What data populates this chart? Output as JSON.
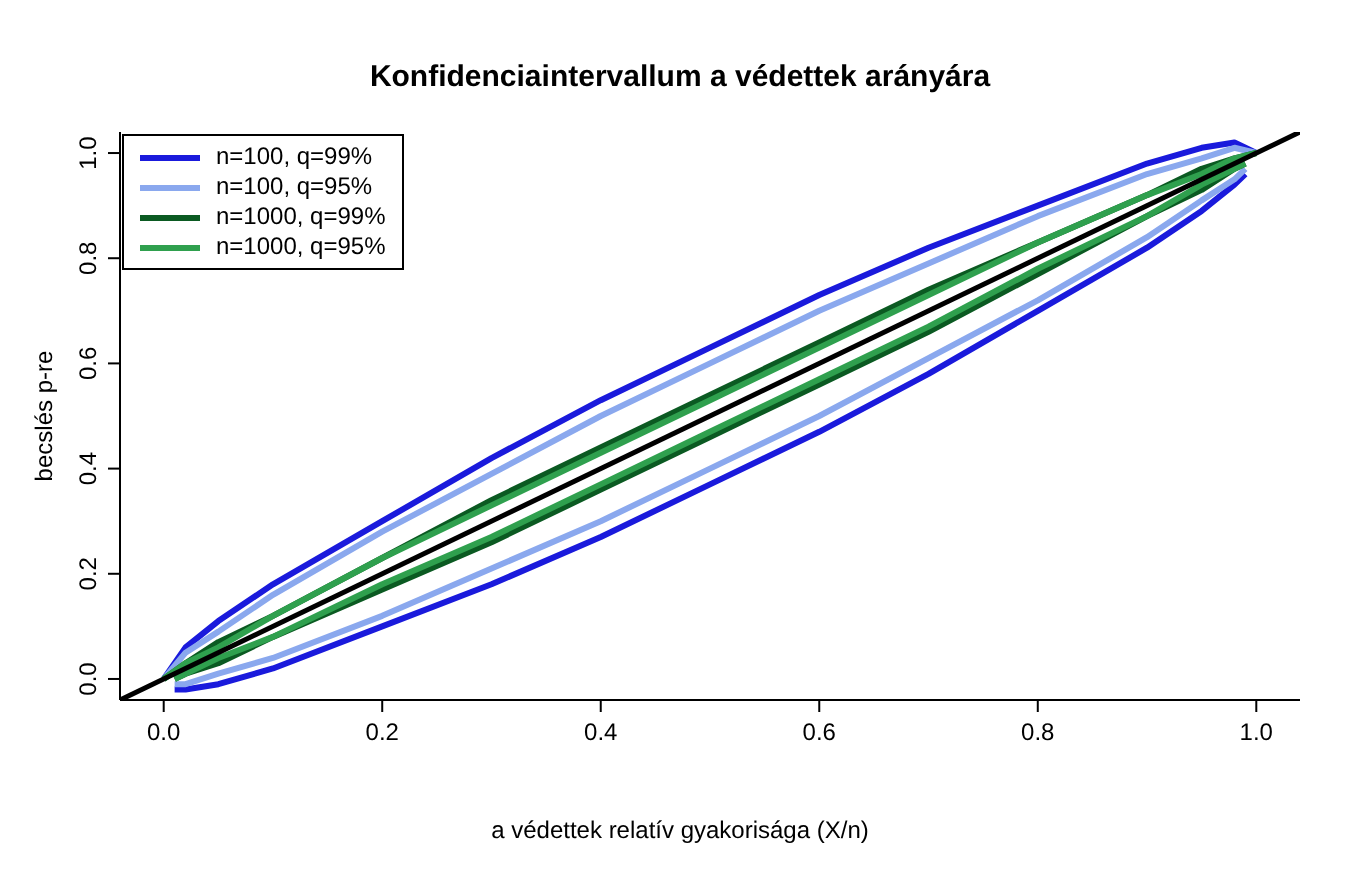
{
  "chart_data": {
    "type": "line",
    "title": "Konfidenciaintervallum a védettek arányára",
    "xlabel": "a védettek relatív gyakorisága (X/n)",
    "ylabel": "becslés p-re",
    "x": [
      0,
      0.02,
      0.05,
      0.1,
      0.2,
      0.3,
      0.4,
      0.5,
      0.6,
      0.7,
      0.8,
      0.9,
      0.95,
      0.98,
      1
    ],
    "series": [
      {
        "name": "n=100, q=99%",
        "color": "#1a1adc",
        "values": [
          0,
          0.06,
          0.11,
          0.18,
          0.3,
          0.42,
          0.53,
          0.63,
          0.73,
          0.82,
          0.9,
          0.98,
          1.01,
          1.02,
          1
        ]
      },
      {
        "color": "#1a1adc",
        "x": [
          0.01,
          0.02,
          0.05,
          0.1,
          0.2,
          0.3,
          0.4,
          0.5,
          0.6,
          0.7,
          0.8,
          0.9,
          0.95,
          0.98,
          0.99
        ],
        "values": [
          -0.02,
          -0.02,
          -0.01,
          0.02,
          0.1,
          0.18,
          0.27,
          0.37,
          0.47,
          0.58,
          0.7,
          0.82,
          0.89,
          0.94,
          0.96
        ]
      },
      {
        "name": "n=100, q=95%",
        "color": "#8aa8ee",
        "values": [
          0,
          0.05,
          0.09,
          0.16,
          0.28,
          0.39,
          0.5,
          0.6,
          0.7,
          0.79,
          0.88,
          0.96,
          0.99,
          1.01,
          1
        ]
      },
      {
        "color": "#8aa8ee",
        "x": [
          0.01,
          0.02,
          0.05,
          0.1,
          0.2,
          0.3,
          0.4,
          0.5,
          0.6,
          0.7,
          0.8,
          0.9,
          0.95,
          0.98,
          0.99
        ],
        "values": [
          -0.01,
          -0.01,
          0.01,
          0.04,
          0.12,
          0.21,
          0.3,
          0.4,
          0.5,
          0.61,
          0.72,
          0.84,
          0.91,
          0.95,
          0.97
        ]
      },
      {
        "name": "n=1000, q=99%",
        "color": "#0b5a22",
        "values": [
          0,
          0.03,
          0.07,
          0.12,
          0.23,
          0.34,
          0.44,
          0.54,
          0.64,
          0.74,
          0.83,
          0.92,
          0.97,
          0.99,
          1
        ]
      },
      {
        "color": "#0b5a22",
        "x": [
          0.01,
          0.02,
          0.05,
          0.1,
          0.2,
          0.3,
          0.4,
          0.5,
          0.6,
          0.7,
          0.8,
          0.9,
          0.95,
          0.98,
          0.99
        ],
        "values": [
          0,
          0.01,
          0.03,
          0.08,
          0.17,
          0.26,
          0.36,
          0.46,
          0.56,
          0.66,
          0.77,
          0.88,
          0.93,
          0.97,
          0.98
        ]
      },
      {
        "name": "n=1000, q=95%",
        "color": "#2fa04e",
        "values": [
          0,
          0.03,
          0.06,
          0.12,
          0.23,
          0.33,
          0.43,
          0.53,
          0.63,
          0.73,
          0.83,
          0.92,
          0.96,
          0.99,
          1
        ]
      },
      {
        "color": "#2fa04e",
        "x": [
          0.01,
          0.02,
          0.05,
          0.1,
          0.2,
          0.3,
          0.4,
          0.5,
          0.6,
          0.7,
          0.8,
          0.9,
          0.95,
          0.98,
          0.99
        ],
        "values": [
          0,
          0.01,
          0.04,
          0.08,
          0.18,
          0.27,
          0.37,
          0.47,
          0.57,
          0.67,
          0.78,
          0.88,
          0.94,
          0.97,
          0.98
        ]
      },
      {
        "color": "#000000",
        "x": [
          -0.04,
          1.04
        ],
        "values": [
          -0.04,
          1.04
        ]
      }
    ],
    "xlim": [
      -0.04,
      1.04
    ],
    "ylim": [
      -0.04,
      1.04
    ],
    "xticks": [
      {
        "value": 0,
        "label": "0.0"
      },
      {
        "value": 0.2,
        "label": "0.2"
      },
      {
        "value": 0.4,
        "label": "0.4"
      },
      {
        "value": 0.6,
        "label": "0.6"
      },
      {
        "value": 0.8,
        "label": "0.8"
      },
      {
        "value": 1,
        "label": "1.0"
      }
    ],
    "yticks": [
      {
        "value": 0,
        "label": "0.0"
      },
      {
        "value": 0.2,
        "label": "0.2"
      },
      {
        "value": 0.4,
        "label": "0.4"
      },
      {
        "value": 0.6,
        "label": "0.6"
      },
      {
        "value": 0.8,
        "label": "0.8"
      },
      {
        "value": 1,
        "label": "1.0"
      }
    ],
    "grid": false,
    "legend": "top left",
    "marker": "none",
    "line_style": "solid"
  }
}
